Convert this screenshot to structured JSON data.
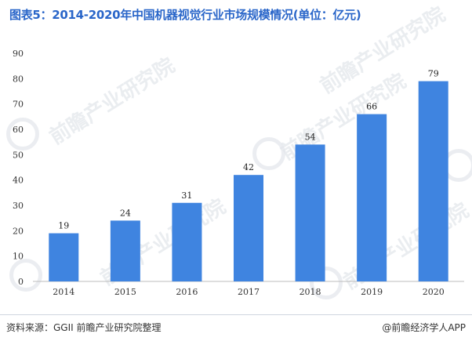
{
  "title": "图表5：2014-2020年中国机器视觉行业市场规模情况(单位：亿元)",
  "source": "资料来源：GGII 前瞻产业研究院整理",
  "brand": "@前瞻经济学人APP",
  "watermark": "前瞻产业研究院",
  "colors": {
    "bar": "#3f84e0",
    "axis": "#bdbdbd",
    "title": "#2a66c9"
  },
  "chart_data": {
    "type": "bar",
    "title": "图表5：2014-2020年中国机器视觉行业市场规模情况(单位：亿元)",
    "xlabel": "",
    "ylabel": "",
    "categories": [
      "2014",
      "2015",
      "2016",
      "2017",
      "2018",
      "2019",
      "2020"
    ],
    "values": [
      19,
      24,
      31,
      42,
      54,
      66,
      79
    ],
    "ylim": [
      0,
      90
    ],
    "yticks": [
      0,
      10,
      20,
      30,
      40,
      50,
      60,
      70,
      80,
      90
    ],
    "grid": false,
    "data_labels": true
  }
}
